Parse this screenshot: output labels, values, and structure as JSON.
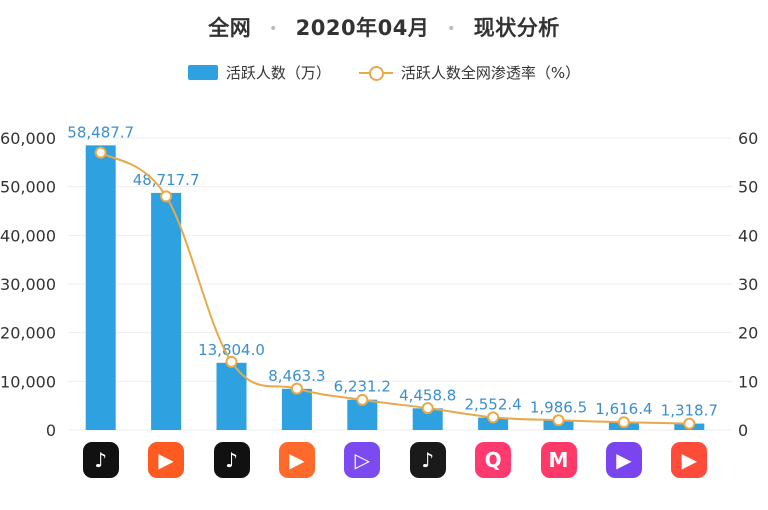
{
  "header": {
    "part1": "全网",
    "part2": "2020年04月",
    "part3": "现状分析",
    "sep": "•"
  },
  "legend": {
    "bar_label": "活跃人数（万）",
    "line_label": "活跃人数全网渗透率（%）"
  },
  "colors": {
    "bar": "#2ea1e0",
    "line": "#e7a94a",
    "label": "#3a8fd0"
  },
  "apps": [
    {
      "icon": "douyin-icon",
      "color": "#111111"
    },
    {
      "icon": "kuaishou-icon",
      "color": "#ff5a1f"
    },
    {
      "icon": "douyin-huoshan-icon",
      "color": "#111111"
    },
    {
      "icon": "kuaishou-jisu-icon",
      "color": "#ff6a2b"
    },
    {
      "icon": "weishi-icon",
      "color": "#7b4bf0"
    },
    {
      "icon": "douyin-jisu-icon",
      "color": "#1a1a1a"
    },
    {
      "icon": "quanmin-icon",
      "color": "#ff3a6e"
    },
    {
      "icon": "meipai-icon",
      "color": "#ff3a68"
    },
    {
      "icon": "haokan-icon",
      "color": "#7a44ee"
    },
    {
      "icon": "quanmin-video-icon",
      "color": "#ff4b3a"
    }
  ],
  "chart_data": {
    "type": "bar",
    "title": "",
    "categories": [
      "",
      "",
      "",
      "",
      "",
      "",
      "",
      "",
      "",
      ""
    ],
    "series": [
      {
        "name": "活跃人数（万）",
        "type": "bar",
        "axis": "left",
        "values": [
          58487.7,
          48717.7,
          13804.0,
          8463.3,
          6231.2,
          4458.8,
          2552.4,
          1986.5,
          1616.4,
          1318.7
        ],
        "labels": [
          "58,487.7",
          "48,717.7",
          "13,804.0",
          "8,463.3",
          "6,231.2",
          "4,458.8",
          "2,552.4",
          "1,986.5",
          "1,616.4",
          "1,318.7"
        ]
      },
      {
        "name": "活跃人数全网渗透率（%）",
        "type": "line",
        "axis": "right",
        "values": [
          57,
          48,
          14,
          8.5,
          6.2,
          4.5,
          2.6,
          2.0,
          1.6,
          1.3
        ]
      }
    ],
    "y_left": {
      "min": 0,
      "max": 60000,
      "ticks": [
        "0",
        "10,000",
        "20,000",
        "30,000",
        "40,000",
        "50,000",
        "60,000"
      ]
    },
    "y_right": {
      "min": 0,
      "max": 60,
      "ticks": [
        "0",
        "10",
        "20",
        "30",
        "40",
        "50",
        "60"
      ]
    },
    "grid": true,
    "legend_position": "top-center"
  }
}
